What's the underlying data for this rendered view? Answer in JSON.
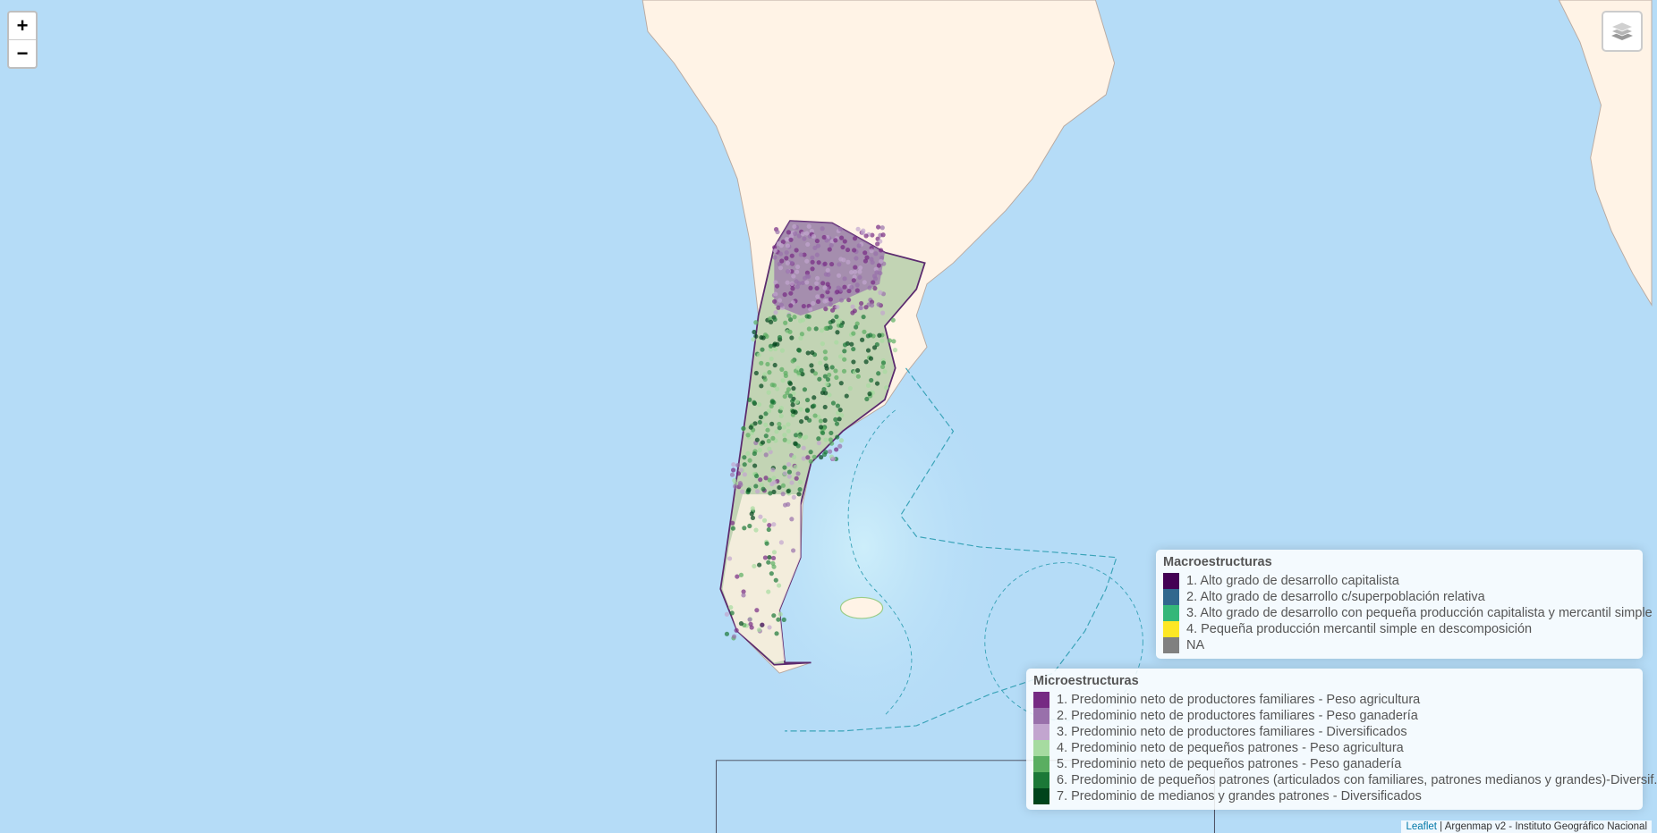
{
  "controls": {
    "zoom_in": "+",
    "zoom_out": "−",
    "layers_icon": "layers-icon"
  },
  "colors": {
    "ocean": "#b5dcf7",
    "land": "#fff3e6"
  },
  "legend_macro": {
    "title": "Macroestructuras",
    "items": [
      {
        "label": "1. Alto grado de desarrollo capitalista",
        "color": "#440154"
      },
      {
        "label": "2. Alto grado de desarrollo c/superpoblación relativa",
        "color": "#31688e"
      },
      {
        "label": "3. Alto grado de desarrollo con pequeña producción capitalista y mercantil simple",
        "color": "#35b779"
      },
      {
        "label": "4. Pequeña producción mercantil simple en descomposición",
        "color": "#fde725"
      },
      {
        "label": "NA",
        "color": "#808080"
      }
    ]
  },
  "legend_micro": {
    "title": "Microestructuras",
    "items": [
      {
        "label": "1. Predominio neto de productores familiares - Peso agricultura",
        "color": "#762a83"
      },
      {
        "label": "2. Predominio neto de productores familiares - Peso ganadería",
        "color": "#9970ab"
      },
      {
        "label": "3. Predominio neto de productores familiares - Diversificados",
        "color": "#c2a5cf"
      },
      {
        "label": "4. Predominio neto de pequeños patrones - Peso agricultura",
        "color": "#a6dba0"
      },
      {
        "label": "5. Predominio neto de pequeños patrones - Peso ganadería",
        "color": "#5aae61"
      },
      {
        "label": "6. Predominio de pequeños patrones (articulados con familiares, patrones medianos y grandes)-Diversif.",
        "color": "#1b7837"
      },
      {
        "label": "7. Predominio de medianos y grandes patrones - Diversificados",
        "color": "#00441b"
      }
    ]
  },
  "attribution": {
    "link": "Leaflet",
    "text": " | Argenmap v2 - Instituto Geográfico Nacional"
  }
}
